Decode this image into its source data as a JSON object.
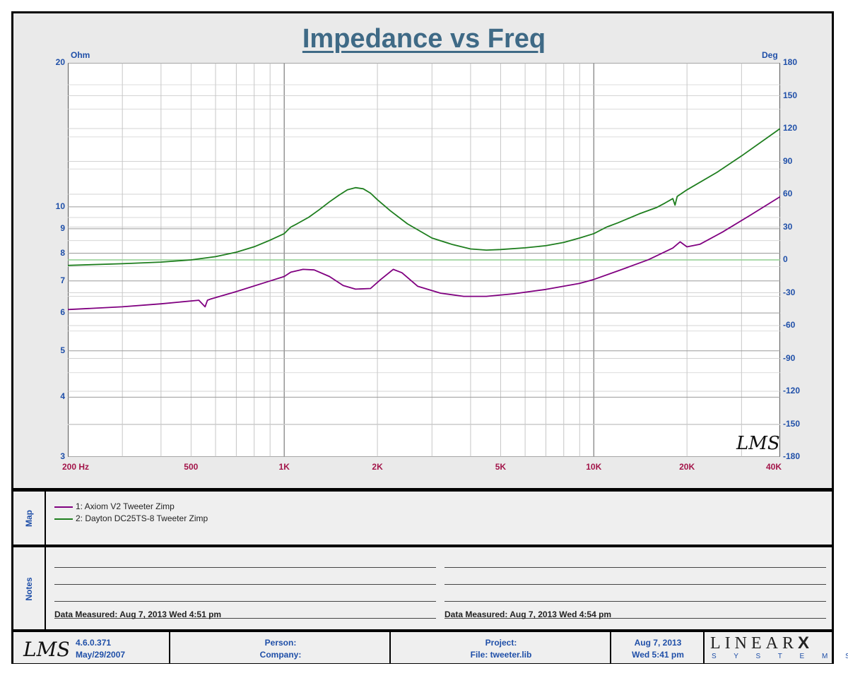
{
  "chart_data": {
    "type": "line",
    "title": "Impedance vs Freq",
    "xscale": "log",
    "xlim": [
      200,
      40000
    ],
    "x_ticks": [
      {
        "value": 200,
        "label": "200  Hz"
      },
      {
        "value": 500,
        "label": "500"
      },
      {
        "value": 1000,
        "label": "1K"
      },
      {
        "value": 2000,
        "label": "2K"
      },
      {
        "value": 5000,
        "label": "5K"
      },
      {
        "value": 10000,
        "label": "10K"
      },
      {
        "value": 20000,
        "label": "20K"
      },
      {
        "value": 40000,
        "label": "40K"
      }
    ],
    "left_axis": {
      "unit": "Ohm",
      "scale": "log",
      "lim": [
        3,
        20
      ],
      "ticks": [
        3,
        4,
        5,
        6,
        7,
        8,
        9,
        10,
        20
      ]
    },
    "right_axis": {
      "unit": "Deg",
      "lim": [
        -180,
        180
      ],
      "ticks": [
        180,
        150,
        120,
        90,
        60,
        30,
        0,
        -30,
        -60,
        -90,
        -120,
        -150,
        -180
      ]
    },
    "grid": true,
    "series": [
      {
        "name": "1: Axiom V2 Tweeter Zimp",
        "color": "#800080",
        "x": [
          200,
          300,
          400,
          530,
          555,
          565,
          580,
          700,
          900,
          1000,
          1050,
          1150,
          1250,
          1400,
          1550,
          1700,
          1900,
          2050,
          2250,
          2400,
          2700,
          3200,
          3800,
          4500,
          5500,
          7000,
          9000,
          10000,
          12000,
          15000,
          18000,
          19000,
          20000,
          22000,
          26000,
          32000,
          40000
        ],
        "y": [
          6.1,
          6.18,
          6.27,
          6.38,
          6.18,
          6.38,
          6.42,
          6.65,
          7.0,
          7.15,
          7.3,
          7.4,
          7.38,
          7.15,
          6.85,
          6.73,
          6.75,
          7.05,
          7.4,
          7.28,
          6.82,
          6.6,
          6.5,
          6.5,
          6.58,
          6.72,
          6.92,
          7.05,
          7.35,
          7.75,
          8.2,
          8.45,
          8.25,
          8.35,
          8.85,
          9.6,
          10.5
        ]
      },
      {
        "name": "2: Dayton DC25TS-8 Tweeter Zimp",
        "color": "#1e7e1e",
        "x": [
          200,
          300,
          400,
          500,
          600,
          700,
          800,
          900,
          1000,
          1050,
          1100,
          1200,
          1300,
          1400,
          1500,
          1600,
          1700,
          1800,
          1900,
          2000,
          2200,
          2500,
          3000,
          3500,
          4000,
          4500,
          5000,
          6000,
          7000,
          8000,
          9000,
          10000,
          11000,
          12000,
          14000,
          16000,
          17000,
          18000,
          18300,
          18600,
          20000,
          25000,
          30000,
          40000
        ],
        "y": [
          -5,
          -3.5,
          -2,
          0,
          3,
          7,
          12,
          18,
          24,
          30,
          33,
          39,
          46,
          53,
          59,
          64,
          66,
          65,
          61,
          55,
          45,
          33,
          20,
          14,
          10,
          9,
          9.5,
          11,
          13,
          16,
          20,
          24,
          30,
          34,
          42,
          48,
          52,
          56,
          50,
          58,
          64,
          80,
          95,
          120
        ]
      }
    ]
  },
  "map": {
    "label": "Map",
    "items": [
      {
        "text": "1: Axiom V2 Tweeter Zimp",
        "color": "#800080"
      },
      {
        "text": "2: Dayton DC25TS-8 Tweeter Zimp",
        "color": "#1e7e1e"
      }
    ]
  },
  "notes": {
    "label": "Notes",
    "left_measured": "Data Measured: Aug  7, 2013  Wed  4:51 pm",
    "right_measured": "Data Measured: Aug  7, 2013  Wed  4:54 pm"
  },
  "footer": {
    "logo": "LMS",
    "version": "4.6.0.371",
    "version_date": "May/29/2007",
    "person": "Person:",
    "company": "Company:",
    "project": "Project:",
    "file": "File: tweeter.lib",
    "date": "Aug  7, 2013",
    "time": "Wed  5:41 pm",
    "brand_top": "LINEAR",
    "brand_x": "X",
    "brand_bottom": "S Y S T E M S"
  },
  "watermark": "LMS"
}
